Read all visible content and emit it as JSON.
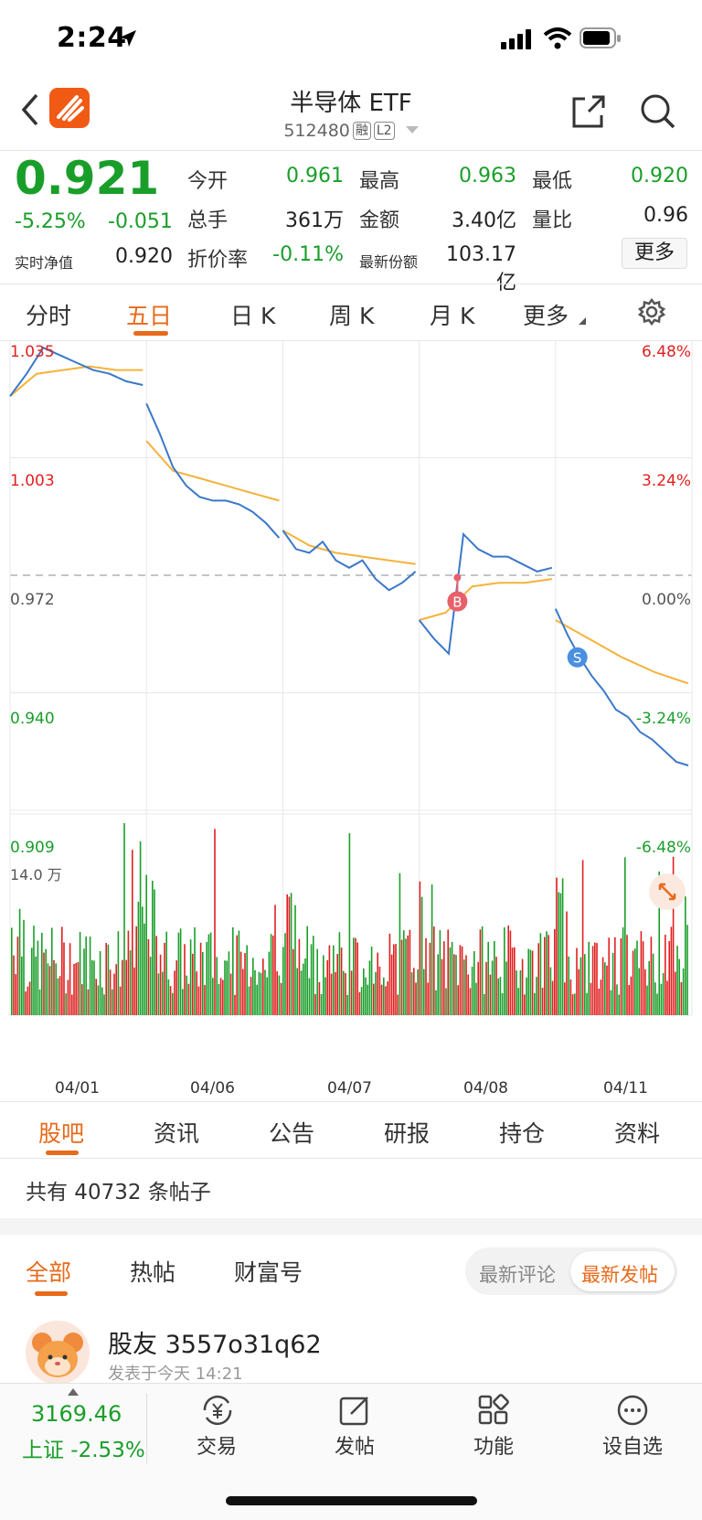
{
  "status": {
    "time": "2:24"
  },
  "header": {
    "title": "半导体 ETF",
    "code": "512480",
    "tag1": "融",
    "tag2": "L2"
  },
  "quote": {
    "price": "0.921",
    "change_pct": "-5.25%",
    "change": "-0.051",
    "nav_label": "实时净值",
    "nav_value": "0.920",
    "rows": [
      [
        {
          "label": "今开",
          "value": "0.961",
          "color": "green"
        },
        {
          "label": "最高",
          "value": "0.963",
          "color": "green"
        },
        {
          "label": "最低",
          "value": "0.920",
          "color": "green"
        }
      ],
      [
        {
          "label": "总手",
          "value": "361万",
          "color": "black"
        },
        {
          "label": "金额",
          "value": "3.40亿",
          "color": "black"
        },
        {
          "label": "量比",
          "value": "0.96",
          "color": "black"
        }
      ],
      [
        {
          "label": "折价率",
          "value": "-0.11%",
          "color": "green"
        },
        {
          "label": "最新份额",
          "value": "103.17亿",
          "color": "black"
        }
      ]
    ],
    "more_label": "更多"
  },
  "chart_tabs": [
    "分时",
    "五日",
    "日 K",
    "周 K",
    "月 K",
    "更多"
  ],
  "chart_tabs_active": 1,
  "chart_data": {
    "type": "line",
    "title": "",
    "x": [
      "04/01",
      "04/06",
      "04/07",
      "04/08",
      "04/11"
    ],
    "y_left_ticks": [
      "1.035",
      "1.003",
      "0.972",
      "0.940",
      "0.909"
    ],
    "y_right_ticks": [
      "6.48%",
      "3.24%",
      "0.00%",
      "-3.24%",
      "-6.48%"
    ],
    "ylim": [
      0.909,
      1.035
    ],
    "prev_close": 0.972,
    "series": [
      {
        "values_by_day": [
          [
            1.02,
            1.026,
            1.033,
            1.031,
            1.029,
            1.027,
            1.026,
            1.024,
            1.023
          ],
          [
            1.018,
            1.01,
            1.001,
            0.996,
            0.993,
            0.992,
            0.992,
            0.991,
            0.989,
            0.986,
            0.982
          ],
          [
            0.984,
            0.979,
            0.978,
            0.981,
            0.976,
            0.974,
            0.976,
            0.971,
            0.968,
            0.97,
            0.973
          ],
          [
            0.96,
            0.955,
            0.951,
            0.983,
            0.979,
            0.977,
            0.977,
            0.975,
            0.973,
            0.974
          ],
          [
            0.963,
            0.956,
            0.95,
            0.945,
            0.941,
            0.936,
            0.934,
            0.93,
            0.928,
            0.925,
            0.922,
            0.921
          ]
        ],
        "color": "#3a78c9"
      },
      {
        "values_by_day": [
          [
            1.02,
            1.026,
            1.027,
            1.028,
            1.027,
            1.027
          ],
          [
            1.008,
            1.0,
            0.998,
            0.996,
            0.994,
            0.992
          ],
          [
            0.984,
            0.98,
            0.978,
            0.977,
            0.976,
            0.975
          ],
          [
            0.96,
            0.962,
            0.969,
            0.97,
            0.97,
            0.971
          ],
          [
            0.96,
            0.955,
            0.95,
            0.946,
            0.943
          ]
        ],
        "color": "#f5b23a"
      }
    ],
    "markers": [
      {
        "label": "B",
        "color": "#e8606a"
      },
      {
        "label": "S",
        "color": "#4a8fe0"
      }
    ],
    "volume_max_label": "14.0 万"
  },
  "feed_tabs": [
    "股吧",
    "资讯",
    "公告",
    "研报",
    "持仓",
    "资料"
  ],
  "feed_tabs_active": 0,
  "post_count": "共有 40732 条帖子",
  "post_filters": [
    "全部",
    "热帖",
    "财富号"
  ],
  "post_filters_active": 0,
  "sort_options": [
    "最新评论",
    "最新发帖"
  ],
  "sort_active": 1,
  "post": {
    "author": "股友 3557o31q62",
    "meta": "发表于今天 14:21"
  },
  "dock": {
    "index_value": "3169.46",
    "index_line": "上证 -2.53%",
    "items": [
      "交易",
      "发帖",
      "功能",
      "设自选"
    ]
  },
  "colors": {
    "up": "#e02020",
    "down": "#1a9e2a",
    "accent": "#e86a1a"
  }
}
